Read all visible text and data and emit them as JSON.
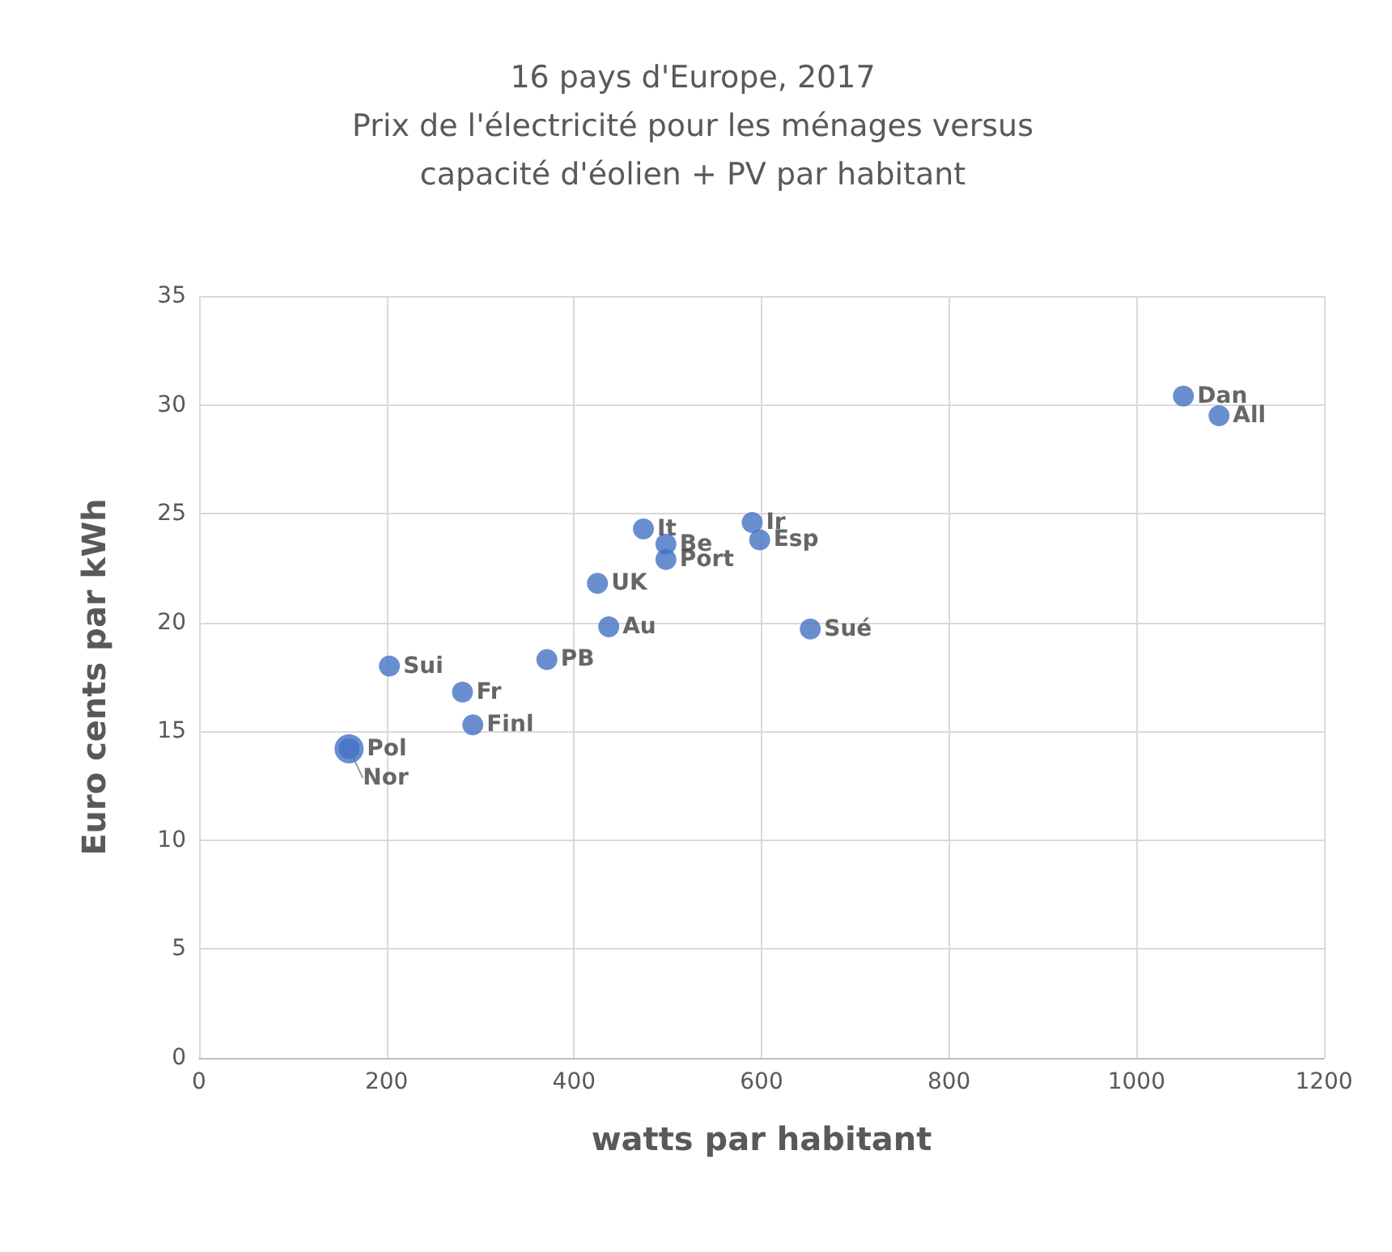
{
  "chart_data": {
    "type": "scatter",
    "title": "16 pays d'Europe, 2017\nPrix de l'électricité pour les ménages versus\ncapacité d'éolien + PV par habitant",
    "xlabel": "watts par habitant",
    "ylabel": "Euro cents par kWh",
    "xlim": [
      0,
      1200
    ],
    "xticks": [
      0,
      200,
      400,
      600,
      800,
      1000,
      1200
    ],
    "ylim": [
      0,
      35
    ],
    "yticks": [
      0,
      5,
      10,
      15,
      20,
      25,
      30,
      35
    ],
    "grid": true,
    "legend": false,
    "marker": "circle",
    "series": [
      {
        "name": "Dan",
        "color": "#4472c4",
        "x": [
          1050
        ],
        "values": [
          30.4
        ]
      },
      {
        "name": "All",
        "color": "#4472c4",
        "x": [
          1088
        ],
        "values": [
          29.5
        ]
      },
      {
        "name": "It",
        "color": "#4472c4",
        "x": [
          474
        ],
        "values": [
          24.3
        ]
      },
      {
        "name": "Be",
        "color": "#4472c4",
        "x": [
          498
        ],
        "values": [
          23.6
        ]
      },
      {
        "name": "Port",
        "color": "#4472c4",
        "x": [
          498
        ],
        "values": [
          22.9
        ]
      },
      {
        "name": "Ir",
        "color": "#4472c4",
        "x": [
          590
        ],
        "values": [
          24.6
        ]
      },
      {
        "name": "Esp",
        "color": "#4472c4",
        "x": [
          598
        ],
        "values": [
          23.8
        ]
      },
      {
        "name": "UK",
        "color": "#4472c4",
        "x": [
          425
        ],
        "values": [
          21.8
        ]
      },
      {
        "name": "Au",
        "color": "#4472c4",
        "x": [
          437
        ],
        "values": [
          19.8
        ]
      },
      {
        "name": "Sué",
        "color": "#4472c4",
        "x": [
          652
        ],
        "values": [
          19.7
        ]
      },
      {
        "name": "PB",
        "color": "#4472c4",
        "x": [
          371
        ],
        "values": [
          18.3
        ]
      },
      {
        "name": "Sui",
        "color": "#4472c4",
        "x": [
          203
        ],
        "values": [
          18.0
        ]
      },
      {
        "name": "Fr",
        "color": "#4472c4",
        "x": [
          281
        ],
        "values": [
          16.8
        ]
      },
      {
        "name": "Finl",
        "color": "#4472c4",
        "x": [
          292
        ],
        "values": [
          15.3
        ]
      },
      {
        "name": "Pol",
        "color": "#4472c4",
        "x": [
          160
        ],
        "values": [
          14.2
        ]
      },
      {
        "name": "Nor",
        "color": "#4472c4",
        "x": [
          160
        ],
        "values": [
          14.2
        ]
      }
    ]
  }
}
